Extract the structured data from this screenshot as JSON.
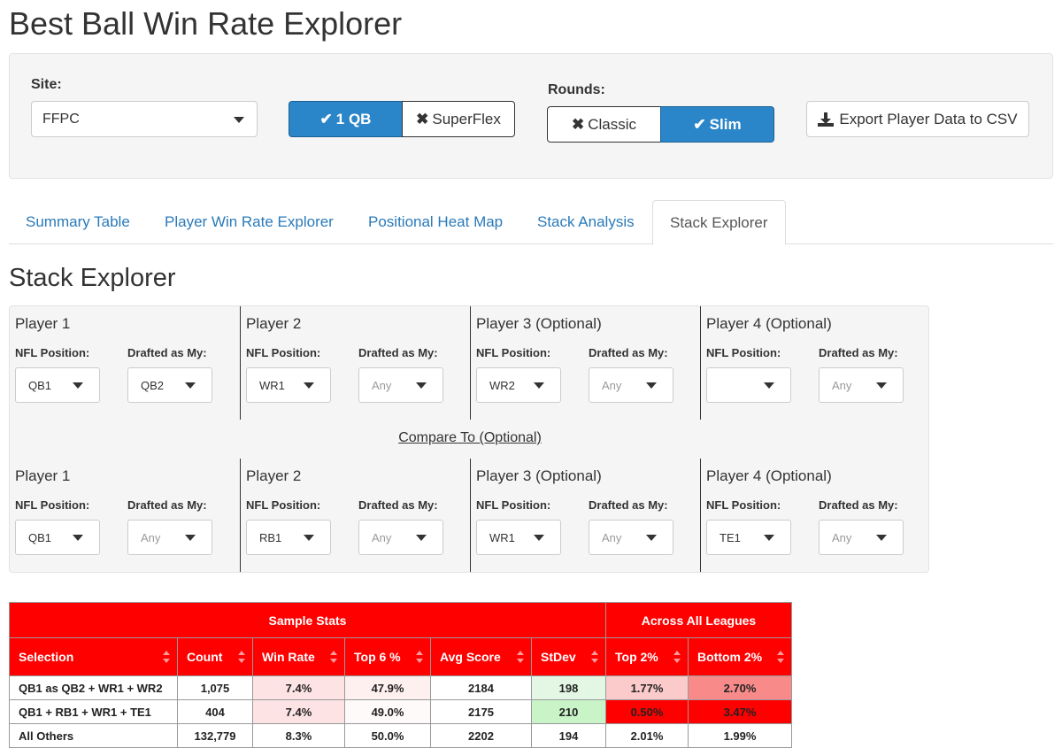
{
  "app": {
    "title": "Best Ball Win Rate Explorer"
  },
  "controls": {
    "site_label": "Site:",
    "site_value": "FFPC",
    "qb_toggle": [
      {
        "label": "1 QB",
        "icon": "check-icon",
        "active": true
      },
      {
        "label": "SuperFlex",
        "icon": "x-icon",
        "active": false
      }
    ],
    "rounds_label": "Rounds:",
    "rounds_toggle": [
      {
        "label": "Classic",
        "icon": "x-icon",
        "active": false
      },
      {
        "label": "Slim",
        "icon": "check-icon",
        "active": true
      }
    ],
    "export_label": "Export Player Data to CSV",
    "export_icon": "download-icon",
    "accent_color": "#2a86c8"
  },
  "tabs": [
    {
      "label": "Summary Table",
      "active": false
    },
    {
      "label": "Player Win Rate Explorer",
      "active": false
    },
    {
      "label": "Positional Heat Map",
      "active": false
    },
    {
      "label": "Stack Analysis",
      "active": false
    },
    {
      "label": "Stack Explorer",
      "active": true
    }
  ],
  "section_title": "Stack Explorer",
  "stack": {
    "pos_label": "NFL Position:",
    "drafted_label": "Drafted as My:",
    "compare_heading": "Compare To (Optional)",
    "primary": [
      {
        "title": "Player 1",
        "position": "QB1",
        "drafted": "QB2"
      },
      {
        "title": "Player 2",
        "position": "WR1",
        "drafted": "Any"
      },
      {
        "title": "Player 3 (Optional)",
        "position": "WR2",
        "drafted": "Any"
      },
      {
        "title": "Player 4 (Optional)",
        "position": "",
        "drafted": "Any"
      }
    ],
    "compare": [
      {
        "title": "Player 1",
        "position": "QB1",
        "drafted": "Any"
      },
      {
        "title": "Player 2",
        "position": "RB1",
        "drafted": "Any"
      },
      {
        "title": "Player 3 (Optional)",
        "position": "WR1",
        "drafted": "Any"
      },
      {
        "title": "Player 4 (Optional)",
        "position": "TE1",
        "drafted": "Any"
      }
    ]
  },
  "table": {
    "group_headers": [
      "Sample Stats",
      "Across All Leagues"
    ],
    "columns": [
      "Selection",
      "Count",
      "Win Rate",
      "Top 6 %",
      "Avg Score",
      "StDev",
      "Top 2%",
      "Bottom 2%"
    ],
    "rows": [
      {
        "selection": "QB1 as QB2 + WR1 + WR2",
        "count": "1,075",
        "win_rate": "7.4%",
        "top6": "47.9%",
        "avg_score": "2184",
        "stdev": "198",
        "top2": "1.77%",
        "bottom2": "2.70%"
      },
      {
        "selection": "QB1 + RB1 + WR1 + TE1",
        "count": "404",
        "win_rate": "7.4%",
        "top6": "49.0%",
        "avg_score": "2175",
        "stdev": "210",
        "top2": "0.50%",
        "bottom2": "3.47%"
      },
      {
        "selection": "All Others",
        "count": "132,779",
        "win_rate": "8.3%",
        "top6": "50.0%",
        "avg_score": "2202",
        "stdev": "194",
        "top2": "2.01%",
        "bottom2": "1.99%"
      }
    ],
    "header_color": "#ff0000"
  }
}
